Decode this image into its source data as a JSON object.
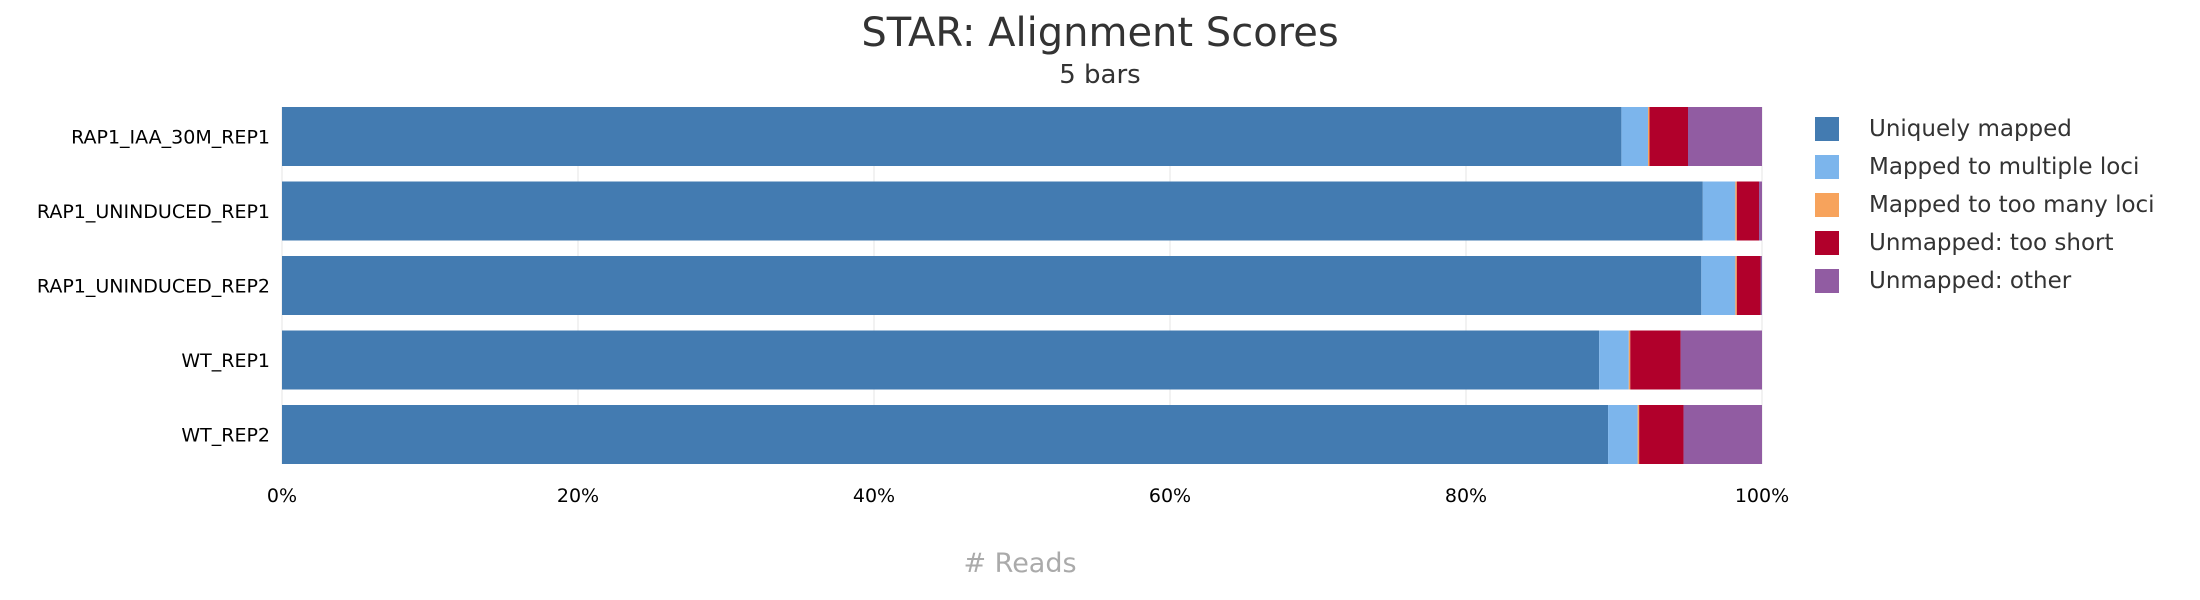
{
  "chart_data": {
    "type": "bar",
    "orientation": "horizontal",
    "stacked": true,
    "title": "STAR: Alignment Scores",
    "subtitle": "5 bars",
    "xlabel": "# Reads",
    "ylabel": "",
    "xlim": [
      0,
      100
    ],
    "x_ticks": [
      "0%",
      "20%",
      "40%",
      "60%",
      "80%",
      "100%"
    ],
    "grid": true,
    "legend_position": "right",
    "categories": [
      "RAP1_IAA_30M_REP1",
      "RAP1_UNINDUCED_REP1",
      "RAP1_UNINDUCED_REP2",
      "WT_REP1",
      "WT_REP2"
    ],
    "series": [
      {
        "name": "Uniquely mapped",
        "color": "#437bb1",
        "values": [
          90.5,
          96.0,
          95.9,
          89.0,
          89.6
        ]
      },
      {
        "name": "Mapped to multiple loci",
        "color": "#7cb5ec",
        "values": [
          1.8,
          2.2,
          2.3,
          2.0,
          2.0
        ]
      },
      {
        "name": "Mapped to too many loci",
        "color": "#f7a35c",
        "values": [
          0.1,
          0.1,
          0.1,
          0.1,
          0.1
        ]
      },
      {
        "name": "Unmapped: too short",
        "color": "#b1002b",
        "values": [
          2.6,
          1.5,
          1.6,
          3.4,
          3.0
        ]
      },
      {
        "name": "Unmapped: other",
        "color": "#915ca2",
        "values": [
          5.0,
          0.2,
          0.1,
          5.5,
          5.3
        ]
      }
    ]
  }
}
